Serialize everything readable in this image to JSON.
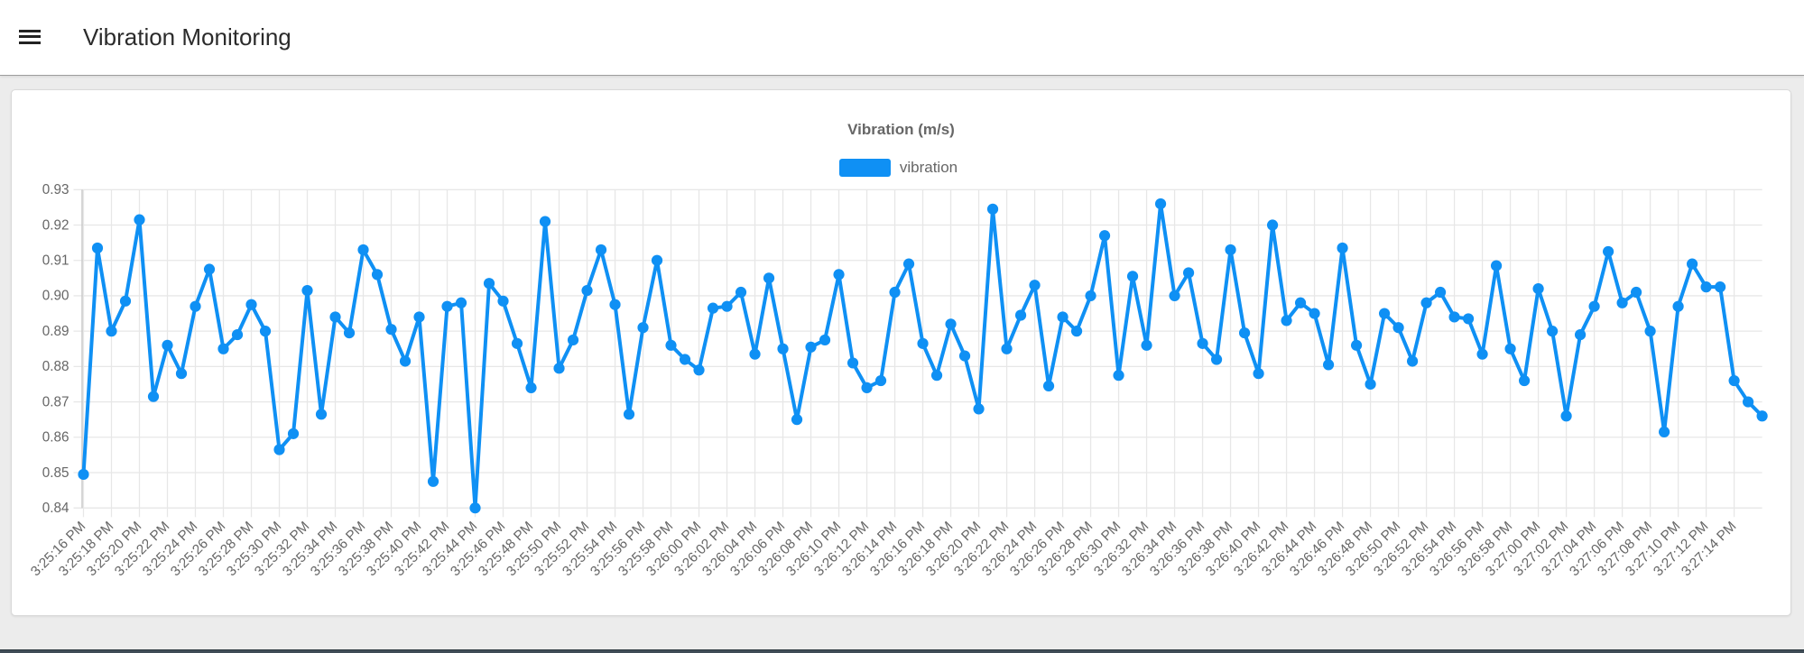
{
  "header": {
    "title": "Vibration Monitoring"
  },
  "chart": {
    "title": "Vibration (m/s)",
    "legend_label": "vibration",
    "series_color": "#0f90f4"
  },
  "chart_data": {
    "type": "line",
    "title": "Vibration (m/s)",
    "legend_position": "top",
    "grid": true,
    "xlabel": "",
    "ylabel": "",
    "ylim": [
      0.84,
      0.93
    ],
    "y_ticks": [
      "0.84",
      "0.85",
      "0.86",
      "0.87",
      "0.88",
      "0.89",
      "0.90",
      "0.91",
      "0.92",
      "0.93"
    ],
    "x_tick_labels": [
      "3:25:16 PM",
      "3:25:18 PM",
      "3:25:20 PM",
      "3:25:22 PM",
      "3:25:24 PM",
      "3:25:26 PM",
      "3:25:28 PM",
      "3:25:30 PM",
      "3:25:32 PM",
      "3:25:34 PM",
      "3:25:36 PM",
      "3:25:38 PM",
      "3:25:40 PM",
      "3:25:42 PM",
      "3:25:44 PM",
      "3:25:46 PM",
      "3:25:48 PM",
      "3:25:50 PM",
      "3:25:52 PM",
      "3:25:54 PM",
      "3:25:56 PM",
      "3:25:58 PM",
      "3:26:00 PM",
      "3:26:02 PM",
      "3:26:04 PM",
      "3:26:06 PM",
      "3:26:08 PM",
      "3:26:10 PM",
      "3:26:12 PM",
      "3:26:14 PM",
      "3:26:16 PM",
      "3:26:18 PM",
      "3:26:20 PM",
      "3:26:22 PM",
      "3:26:24 PM",
      "3:26:26 PM",
      "3:26:28 PM",
      "3:26:30 PM",
      "3:26:32 PM",
      "3:26:34 PM",
      "3:26:36 PM",
      "3:26:38 PM",
      "3:26:40 PM",
      "3:26:42 PM",
      "3:26:44 PM",
      "3:26:46 PM",
      "3:26:48 PM",
      "3:26:50 PM",
      "3:26:52 PM",
      "3:26:54 PM",
      "3:26:56 PM",
      "3:26:58 PM",
      "3:27:00 PM",
      "3:27:02 PM",
      "3:27:04 PM",
      "3:27:06 PM",
      "3:27:08 PM",
      "3:27:10 PM",
      "3:27:12 PM",
      "3:27:14 PM"
    ],
    "points_per_x_tick": 2,
    "series": [
      {
        "name": "vibration",
        "color": "#0f90f4",
        "values": [
          0.8495,
          0.9135,
          0.89,
          0.8985,
          0.9215,
          0.8715,
          0.886,
          0.878,
          0.897,
          0.9075,
          0.885,
          0.889,
          0.8975,
          0.89,
          0.8565,
          0.861,
          0.9015,
          0.8665,
          0.894,
          0.8895,
          0.913,
          0.906,
          0.8905,
          0.8815,
          0.894,
          0.8475,
          0.897,
          0.898,
          0.84,
          0.9035,
          0.8985,
          0.8865,
          0.874,
          0.921,
          0.8795,
          0.8875,
          0.9015,
          0.913,
          0.8975,
          0.8665,
          0.891,
          0.91,
          0.886,
          0.882,
          0.879,
          0.8965,
          0.897,
          0.901,
          0.8835,
          0.905,
          0.885,
          0.865,
          0.8855,
          0.8875,
          0.906,
          0.881,
          0.874,
          0.876,
          0.901,
          0.909,
          0.8865,
          0.8775,
          0.892,
          0.883,
          0.868,
          0.9245,
          0.885,
          0.8945,
          0.903,
          0.8745,
          0.894,
          0.89,
          0.9,
          0.917,
          0.8775,
          0.9055,
          0.886,
          0.926,
          0.9,
          0.9065,
          0.8865,
          0.882,
          0.913,
          0.8895,
          0.878,
          0.92,
          0.893,
          0.898,
          0.895,
          0.8805,
          0.9135,
          0.886,
          0.875,
          0.895,
          0.891,
          0.8815,
          0.898,
          0.901,
          0.894,
          0.8935,
          0.8835,
          0.9085,
          0.885,
          0.876,
          0.902,
          0.89,
          0.866,
          0.889,
          0.897,
          0.9125,
          0.898,
          0.901,
          0.89,
          0.8615,
          0.897,
          0.909,
          0.9025,
          0.9025,
          0.876,
          0.87,
          0.866
        ]
      }
    ]
  }
}
